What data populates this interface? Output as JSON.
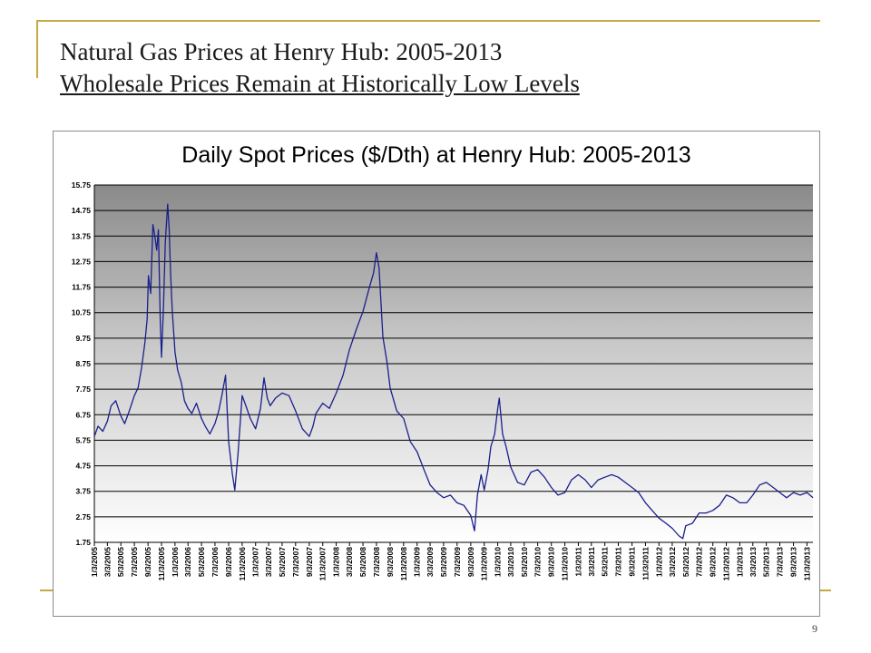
{
  "slide": {
    "title": "Natural Gas Prices at Henry Hub:  2005-2013",
    "subtitle": "Wholesale Prices Remain at Historically Low Levels",
    "page_number": "9"
  },
  "colors": {
    "accent": "#c8a841",
    "series": "#1a1f8c"
  },
  "chart_data": {
    "type": "line",
    "title": "Daily Spot Prices ($/Dth) at Henry Hub:  2005-2013",
    "xlabel": "",
    "ylabel": "",
    "ylim": [
      1.75,
      15.75
    ],
    "yticks": [
      "1.75",
      "2.75",
      "3.75",
      "4.75",
      "5.75",
      "6.75",
      "7.75",
      "8.75",
      "9.75",
      "10.75",
      "11.75",
      "12.75",
      "13.75",
      "14.75",
      "15.75"
    ],
    "xticks": [
      "1/3/2005",
      "3/3/2005",
      "5/3/2005",
      "7/3/2005",
      "9/3/2005",
      "11/3/2005",
      "1/3/2006",
      "3/3/2006",
      "5/3/2006",
      "7/3/2006",
      "9/3/2006",
      "11/3/2006",
      "1/3/2007",
      "3/3/2007",
      "5/3/2007",
      "7/3/2007",
      "9/3/2007",
      "11/3/2007",
      "1/3/2008",
      "3/3/2008",
      "5/3/2008",
      "7/3/2008",
      "9/3/2008",
      "11/3/2008",
      "1/3/2009",
      "3/3/2009",
      "5/3/2009",
      "7/3/2009",
      "9/3/2009",
      "11/3/2009",
      "1/3/2010",
      "3/3/2010",
      "5/3/2010",
      "7/3/2010",
      "9/3/2010",
      "11/3/2010",
      "1/3/2011",
      "3/3/2011",
      "5/3/2011",
      "7/3/2011",
      "9/3/2011",
      "11/3/2011",
      "1/3/2012",
      "3/3/2012",
      "5/3/2012",
      "7/3/2012",
      "9/3/2012",
      "11/3/2012",
      "1/3/2013",
      "3/3/2013",
      "5/3/2013",
      "7/3/2013",
      "9/3/2013",
      "11/3/2013"
    ],
    "grid": true,
    "legend": "none",
    "series": [
      {
        "x": [
          "2005-01-03",
          "2005-01-20",
          "2005-02-10",
          "2005-03-03",
          "2005-03-20",
          "2005-04-10",
          "2005-05-03",
          "2005-05-20",
          "2005-06-10",
          "2005-07-03",
          "2005-07-20",
          "2005-08-05",
          "2005-08-20",
          "2005-08-30",
          "2005-09-05",
          "2005-09-15",
          "2005-09-25",
          "2005-10-03",
          "2005-10-12",
          "2005-10-20",
          "2005-10-28",
          "2005-11-03",
          "2005-11-12",
          "2005-11-20",
          "2005-12-01",
          "2005-12-08",
          "2005-12-14",
          "2005-12-22",
          "2006-01-03",
          "2006-01-15",
          "2006-02-01",
          "2006-02-15",
          "2006-03-03",
          "2006-03-20",
          "2006-04-10",
          "2006-05-03",
          "2006-05-20",
          "2006-06-10",
          "2006-07-03",
          "2006-07-20",
          "2006-08-03",
          "2006-08-20",
          "2006-09-03",
          "2006-09-20",
          "2006-10-01",
          "2006-10-15",
          "2006-11-03",
          "2006-11-20",
          "2006-12-10",
          "2007-01-03",
          "2007-01-25",
          "2007-02-10",
          "2007-02-25",
          "2007-03-10",
          "2007-04-03",
          "2007-05-03",
          "2007-06-03",
          "2007-07-03",
          "2007-08-03",
          "2007-09-03",
          "2007-09-20",
          "2007-10-03",
          "2007-11-03",
          "2007-12-03",
          "2008-01-03",
          "2008-02-03",
          "2008-03-03",
          "2008-04-03",
          "2008-05-03",
          "2008-06-03",
          "2008-06-20",
          "2008-07-03",
          "2008-07-15",
          "2008-08-01",
          "2008-08-20",
          "2008-09-03",
          "2008-10-03",
          "2008-11-03",
          "2008-12-03",
          "2009-01-03",
          "2009-02-03",
          "2009-03-03",
          "2009-04-03",
          "2009-05-03",
          "2009-06-03",
          "2009-07-03",
          "2009-08-03",
          "2009-09-03",
          "2009-09-20",
          "2009-10-03",
          "2009-10-20",
          "2009-11-03",
          "2009-11-20",
          "2009-12-03",
          "2009-12-20",
          "2010-01-03",
          "2010-01-10",
          "2010-01-25",
          "2010-02-10",
          "2010-03-03",
          "2010-04-03",
          "2010-05-03",
          "2010-06-03",
          "2010-07-03",
          "2010-08-03",
          "2010-09-03",
          "2010-10-03",
          "2010-11-03",
          "2010-12-03",
          "2011-01-03",
          "2011-02-03",
          "2011-03-03",
          "2011-04-03",
          "2011-05-03",
          "2011-06-03",
          "2011-07-03",
          "2011-08-03",
          "2011-09-03",
          "2011-10-03",
          "2011-11-03",
          "2011-12-03",
          "2012-01-03",
          "2012-02-03",
          "2012-03-03",
          "2012-04-03",
          "2012-04-20",
          "2012-05-03",
          "2012-06-03",
          "2012-07-03",
          "2012-08-03",
          "2012-09-03",
          "2012-10-03",
          "2012-11-03",
          "2012-12-03",
          "2013-01-03",
          "2013-02-03",
          "2013-03-03",
          "2013-04-03",
          "2013-05-03",
          "2013-06-03",
          "2013-07-03",
          "2013-08-03",
          "2013-09-03",
          "2013-10-03",
          "2013-11-03",
          "2013-11-30"
        ],
        "values": [
          5.9,
          6.3,
          6.1,
          6.5,
          7.1,
          7.3,
          6.7,
          6.4,
          6.9,
          7.5,
          7.8,
          8.6,
          9.6,
          10.5,
          12.2,
          11.5,
          14.2,
          13.8,
          13.2,
          14.0,
          10.5,
          9.0,
          11.0,
          13.5,
          15.0,
          14.0,
          12.3,
          10.8,
          9.2,
          8.5,
          8.0,
          7.3,
          7.0,
          6.8,
          7.2,
          6.6,
          6.3,
          6.0,
          6.4,
          6.9,
          7.5,
          8.3,
          5.7,
          4.4,
          3.8,
          5.2,
          7.5,
          7.1,
          6.6,
          6.2,
          7.0,
          8.2,
          7.4,
          7.1,
          7.4,
          7.6,
          7.5,
          6.9,
          6.2,
          5.9,
          6.3,
          6.8,
          7.2,
          7.0,
          7.6,
          8.3,
          9.3,
          10.1,
          10.8,
          11.8,
          12.3,
          13.1,
          12.5,
          9.8,
          8.8,
          7.8,
          6.9,
          6.6,
          5.7,
          5.3,
          4.6,
          4.0,
          3.7,
          3.5,
          3.6,
          3.3,
          3.2,
          2.8,
          2.2,
          3.6,
          4.4,
          3.8,
          4.6,
          5.5,
          6.0,
          7.0,
          7.4,
          6.0,
          5.5,
          4.7,
          4.1,
          4.0,
          4.5,
          4.6,
          4.3,
          3.9,
          3.6,
          3.7,
          4.2,
          4.4,
          4.2,
          3.9,
          4.2,
          4.3,
          4.4,
          4.3,
          4.1,
          3.9,
          3.7,
          3.3,
          3.0,
          2.7,
          2.5,
          2.3,
          2.0,
          1.9,
          2.4,
          2.5,
          2.9,
          2.9,
          3.0,
          3.2,
          3.6,
          3.5,
          3.3,
          3.3,
          3.6,
          4.0,
          4.1,
          3.9,
          3.7,
          3.5,
          3.7,
          3.6,
          3.7,
          3.5
        ]
      }
    ]
  }
}
